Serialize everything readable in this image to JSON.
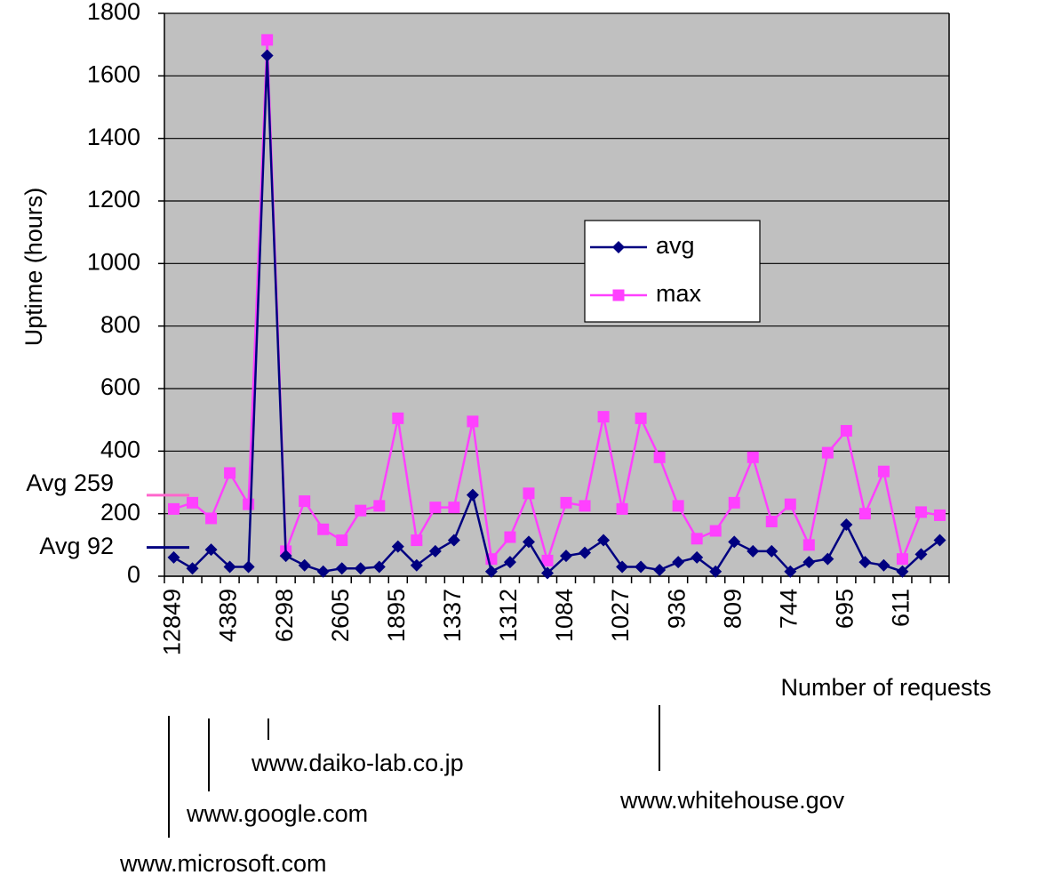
{
  "chart_data": {
    "type": "line",
    "xlabel": "Number of requests",
    "ylabel": "Uptime (hours)",
    "categories": [
      "12849",
      null,
      null,
      "4389",
      null,
      null,
      "6298",
      null,
      null,
      "2605",
      null,
      null,
      "1895",
      null,
      null,
      "1337",
      null,
      null,
      "1312",
      null,
      null,
      "1084",
      null,
      null,
      "1027",
      null,
      null,
      "936",
      null,
      null,
      "809",
      null,
      null,
      "744",
      null,
      null,
      "695",
      null,
      null,
      "611",
      null,
      null
    ],
    "series": [
      {
        "name": "avg",
        "color": "#000080",
        "marker": "diamond",
        "values": [
          60,
          25,
          85,
          30,
          30,
          1665,
          65,
          35,
          15,
          25,
          25,
          30,
          95,
          35,
          80,
          115,
          260,
          15,
          45,
          110,
          10,
          65,
          75,
          115,
          30,
          30,
          20,
          45,
          60,
          15,
          110,
          80,
          80,
          15,
          45,
          55,
          165,
          45,
          35,
          15,
          70,
          115
        ]
      },
      {
        "name": "max",
        "color": "#ff40ff",
        "marker": "square",
        "values": [
          215,
          235,
          185,
          330,
          230,
          1715,
          80,
          240,
          150,
          115,
          210,
          225,
          505,
          115,
          220,
          220,
          495,
          55,
          125,
          265,
          50,
          235,
          225,
          510,
          215,
          505,
          380,
          225,
          120,
          145,
          235,
          380,
          175,
          230,
          100,
          395,
          465,
          200,
          335,
          55,
          205,
          195
        ]
      }
    ],
    "ylim": [
      0,
      1800
    ],
    "yticks": [
      0,
      200,
      400,
      600,
      800,
      1000,
      1200,
      1400,
      1600,
      1800
    ],
    "grid": true,
    "plot_background": "#c0c0c0",
    "reference_lines": [
      {
        "label": "Avg 259",
        "value": 259,
        "color": "#ff66cc"
      },
      {
        "label": "Avg 92",
        "value": 92,
        "color": "#000080"
      }
    ],
    "annotations": [
      "www.microsoft.com",
      "www.google.com",
      "www.daiko-lab.co.jp",
      "www.whitehouse.gov"
    ]
  }
}
